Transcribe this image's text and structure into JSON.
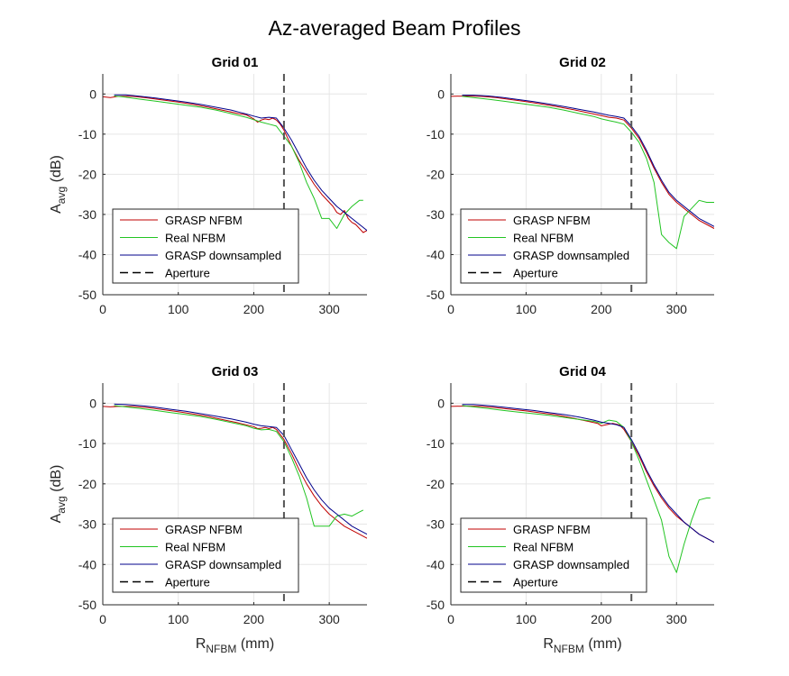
{
  "figure": {
    "title": "Az-averaged Beam Profiles",
    "x_label_main": "R",
    "x_label_sub": "NFBM",
    "x_label_unit": " (mm)",
    "y_label_main": "A",
    "y_label_sub": "avg",
    "y_label_unit": " (dB)"
  },
  "legend_entries": [
    {
      "label": "GRASP NFBM",
      "color": "#c00000",
      "dash": "solid"
    },
    {
      "label": "Real NFBM",
      "color": "#22c422",
      "dash": "solid"
    },
    {
      "label": "GRASP downsampled",
      "color": "#00008b",
      "dash": "solid"
    },
    {
      "label": "Aperture",
      "color": "#000000",
      "dash": "dashed"
    }
  ],
  "chart_data": [
    {
      "type": "line",
      "title": "Grid 01",
      "xlim": [
        0,
        350
      ],
      "ylim": [
        -50,
        5
      ],
      "xticks": [
        0,
        100,
        200,
        300
      ],
      "yticks": [
        0,
        -10,
        -20,
        -30,
        -40,
        -50
      ],
      "grid": true,
      "legend_position": "bottom-left",
      "aperture_x": 240,
      "series": [
        {
          "name": "GRASP NFBM",
          "x": [
            0,
            10,
            20,
            40,
            60,
            80,
            100,
            120,
            140,
            160,
            180,
            190,
            200,
            205,
            210,
            215,
            220,
            225,
            230,
            235,
            240,
            245,
            250,
            260,
            270,
            280,
            290,
            300,
            305,
            310,
            315,
            320,
            325,
            330,
            335,
            340,
            345,
            350
          ],
          "y": [
            -0.7,
            -0.9,
            -0.6,
            -0.6,
            -1.0,
            -1.5,
            -2.0,
            -2.6,
            -3.3,
            -4.1,
            -4.9,
            -5.2,
            -6.2,
            -7.0,
            -6.5,
            -6.2,
            -6.4,
            -6.0,
            -6.5,
            -7.5,
            -9.0,
            -11.0,
            -13.0,
            -16.5,
            -19.5,
            -22.5,
            -25.0,
            -27.0,
            -28.0,
            -29.5,
            -30.0,
            -29.0,
            -31.0,
            -32.0,
            -32.5,
            -33.5,
            -34.5,
            -34.0
          ]
        },
        {
          "name": "Real NFBM",
          "x": [
            15,
            30,
            50,
            70,
            90,
            110,
            130,
            150,
            170,
            190,
            200,
            210,
            220,
            230,
            240,
            250,
            260,
            270,
            280,
            290,
            300,
            310,
            320,
            330,
            340,
            345
          ],
          "y": [
            -0.5,
            -0.8,
            -1.3,
            -1.8,
            -2.3,
            -2.8,
            -3.3,
            -4.0,
            -4.9,
            -5.8,
            -6.4,
            -7.0,
            -7.5,
            -8.0,
            -10.5,
            -13.0,
            -17.0,
            -22.0,
            -26.0,
            -31.0,
            -31.0,
            -33.5,
            -30.0,
            -28.0,
            -26.5,
            -26.5
          ]
        },
        {
          "name": "GRASP downsampled",
          "x": [
            15,
            30,
            50,
            70,
            90,
            110,
            130,
            150,
            170,
            180,
            190,
            200,
            210,
            220,
            230,
            240,
            250,
            260,
            270,
            280,
            290,
            300,
            310,
            320,
            330,
            340,
            350
          ],
          "y": [
            -0.2,
            -0.2,
            -0.6,
            -1.0,
            -1.5,
            -2.0,
            -2.6,
            -3.3,
            -4.0,
            -4.5,
            -5.0,
            -5.5,
            -6.0,
            -5.8,
            -6.0,
            -8.5,
            -11.5,
            -15.0,
            -18.5,
            -21.5,
            -24.0,
            -26.0,
            -28.0,
            -29.5,
            -31.0,
            -32.5,
            -34.0
          ]
        }
      ]
    },
    {
      "type": "line",
      "title": "Grid 02",
      "xlim": [
        0,
        350
      ],
      "ylim": [
        -50,
        5
      ],
      "xticks": [
        0,
        100,
        200,
        300
      ],
      "yticks": [
        0,
        -10,
        -20,
        -30,
        -40,
        -50
      ],
      "grid": true,
      "legend_position": "bottom-left",
      "aperture_x": 240,
      "series": [
        {
          "name": "GRASP NFBM",
          "x": [
            0,
            20,
            40,
            60,
            80,
            100,
            120,
            140,
            160,
            180,
            200,
            210,
            220,
            230,
            240,
            250,
            260,
            270,
            280,
            290,
            300,
            310,
            320,
            330,
            340,
            350
          ],
          "y": [
            -0.6,
            -0.5,
            -0.6,
            -0.9,
            -1.4,
            -1.9,
            -2.5,
            -3.1,
            -3.8,
            -4.6,
            -5.4,
            -5.8,
            -6.0,
            -6.5,
            -8.5,
            -11.0,
            -14.5,
            -18.5,
            -22.0,
            -25.0,
            -27.0,
            -28.5,
            -30.0,
            -31.5,
            -32.5,
            -33.5
          ]
        },
        {
          "name": "Real NFBM",
          "x": [
            15,
            30,
            50,
            70,
            90,
            110,
            130,
            150,
            170,
            190,
            200,
            210,
            220,
            230,
            240,
            250,
            260,
            270,
            280,
            290,
            300,
            310,
            320,
            330,
            340,
            350
          ],
          "y": [
            -0.6,
            -0.9,
            -1.3,
            -1.8,
            -2.3,
            -2.8,
            -3.3,
            -4.0,
            -4.8,
            -5.6,
            -6.2,
            -6.6,
            -7.0,
            -7.5,
            -9.5,
            -12.0,
            -16.0,
            -22.0,
            -35.0,
            -37.0,
            -38.5,
            -30.5,
            -28.5,
            -26.5,
            -27.0,
            -27.0
          ]
        },
        {
          "name": "GRASP downsampled",
          "x": [
            15,
            30,
            50,
            70,
            90,
            110,
            130,
            150,
            170,
            190,
            200,
            210,
            220,
            230,
            240,
            250,
            260,
            270,
            280,
            290,
            300,
            310,
            320,
            330,
            340,
            350
          ],
          "y": [
            -0.3,
            -0.3,
            -0.5,
            -0.9,
            -1.4,
            -1.9,
            -2.5,
            -3.1,
            -3.8,
            -4.5,
            -4.9,
            -5.3,
            -5.6,
            -6.0,
            -8.0,
            -10.5,
            -14.0,
            -18.0,
            -21.5,
            -24.5,
            -26.5,
            -28.0,
            -29.5,
            -31.0,
            -32.0,
            -33.0
          ]
        }
      ]
    },
    {
      "type": "line",
      "title": "Grid 03",
      "xlim": [
        0,
        350
      ],
      "ylim": [
        -50,
        5
      ],
      "xticks": [
        0,
        100,
        200,
        300
      ],
      "yticks": [
        0,
        -10,
        -20,
        -30,
        -40,
        -50
      ],
      "grid": true,
      "legend_position": "bottom-left",
      "aperture_x": 240,
      "series": [
        {
          "name": "GRASP NFBM",
          "x": [
            0,
            10,
            20,
            40,
            60,
            80,
            100,
            120,
            140,
            160,
            180,
            200,
            205,
            210,
            215,
            220,
            225,
            230,
            240,
            250,
            260,
            270,
            280,
            290,
            300,
            310,
            320,
            330,
            340,
            350
          ],
          "y": [
            -0.8,
            -0.9,
            -0.8,
            -0.8,
            -1.1,
            -1.6,
            -2.1,
            -2.7,
            -3.3,
            -4.1,
            -4.9,
            -5.8,
            -6.3,
            -6.2,
            -6.0,
            -6.3,
            -6.0,
            -6.5,
            -9.0,
            -12.5,
            -16.5,
            -20.0,
            -23.0,
            -25.5,
            -27.5,
            -29.0,
            -30.5,
            -31.5,
            -32.5,
            -33.5
          ]
        },
        {
          "name": "Real NFBM",
          "x": [
            15,
            30,
            50,
            70,
            90,
            110,
            130,
            150,
            170,
            190,
            200,
            210,
            220,
            230,
            240,
            250,
            260,
            270,
            280,
            290,
            300,
            310,
            320,
            330,
            340,
            345
          ],
          "y": [
            -0.6,
            -0.9,
            -1.3,
            -1.8,
            -2.3,
            -2.8,
            -3.3,
            -4.0,
            -4.8,
            -5.6,
            -6.2,
            -6.6,
            -6.5,
            -7.0,
            -9.5,
            -13.5,
            -18.0,
            -23.5,
            -30.5,
            -30.5,
            -30.5,
            -28.0,
            -27.5,
            -28.0,
            -27.0,
            -26.5
          ]
        },
        {
          "name": "GRASP downsampled",
          "x": [
            15,
            30,
            50,
            70,
            90,
            110,
            130,
            150,
            170,
            190,
            200,
            210,
            220,
            230,
            240,
            250,
            260,
            270,
            280,
            290,
            300,
            310,
            320,
            330,
            340,
            350
          ],
          "y": [
            -0.2,
            -0.3,
            -0.6,
            -1.0,
            -1.5,
            -2.0,
            -2.6,
            -3.2,
            -3.9,
            -4.7,
            -5.2,
            -5.6,
            -5.8,
            -6.0,
            -8.0,
            -11.5,
            -15.0,
            -18.5,
            -21.5,
            -24.0,
            -26.0,
            -27.5,
            -29.0,
            -30.5,
            -31.5,
            -32.5
          ]
        }
      ]
    },
    {
      "type": "line",
      "title": "Grid 04",
      "xlim": [
        0,
        350
      ],
      "ylim": [
        -50,
        5
      ],
      "xticks": [
        0,
        100,
        200,
        300
      ],
      "yticks": [
        0,
        -10,
        -20,
        -30,
        -40,
        -50
      ],
      "grid": true,
      "legend_position": "bottom-left",
      "aperture_x": 240,
      "series": [
        {
          "name": "GRASP NFBM",
          "x": [
            0,
            20,
            40,
            60,
            80,
            100,
            120,
            140,
            160,
            180,
            195,
            200,
            205,
            210,
            215,
            220,
            225,
            230,
            240,
            250,
            260,
            270,
            280,
            290,
            300,
            310,
            320,
            330,
            340,
            350
          ],
          "y": [
            -0.8,
            -0.7,
            -0.8,
            -1.1,
            -1.5,
            -1.9,
            -2.4,
            -2.9,
            -3.6,
            -4.4,
            -5.0,
            -5.6,
            -5.4,
            -5.2,
            -5.0,
            -5.2,
            -5.5,
            -6.5,
            -9.5,
            -13.0,
            -17.0,
            -20.5,
            -23.5,
            -26.0,
            -28.0,
            -29.5,
            -31.0,
            -32.5,
            -33.5,
            -34.5
          ]
        },
        {
          "name": "Real NFBM",
          "x": [
            15,
            30,
            50,
            70,
            90,
            110,
            130,
            150,
            170,
            190,
            200,
            210,
            220,
            230,
            240,
            250,
            260,
            270,
            280,
            290,
            300,
            310,
            320,
            330,
            340,
            345
          ],
          "y": [
            -0.6,
            -0.9,
            -1.3,
            -1.8,
            -2.2,
            -2.6,
            -3.0,
            -3.5,
            -4.0,
            -4.5,
            -5.0,
            -4.2,
            -4.5,
            -6.0,
            -9.5,
            -14.0,
            -19.0,
            -24.0,
            -29.0,
            -38.0,
            -42.0,
            -35.0,
            -29.0,
            -24.0,
            -23.5,
            -23.5
          ]
        },
        {
          "name": "GRASP downsampled",
          "x": [
            15,
            30,
            50,
            70,
            90,
            110,
            130,
            150,
            170,
            190,
            200,
            210,
            220,
            230,
            240,
            250,
            260,
            270,
            280,
            290,
            300,
            310,
            320,
            330,
            340,
            350
          ],
          "y": [
            -0.3,
            -0.3,
            -0.6,
            -1.0,
            -1.4,
            -1.8,
            -2.3,
            -2.8,
            -3.4,
            -4.2,
            -4.7,
            -5.0,
            -5.3,
            -6.0,
            -9.0,
            -12.5,
            -16.5,
            -20.0,
            -23.0,
            -25.5,
            -27.5,
            -29.5,
            -31.0,
            -32.5,
            -33.5,
            -34.5
          ]
        }
      ]
    }
  ]
}
